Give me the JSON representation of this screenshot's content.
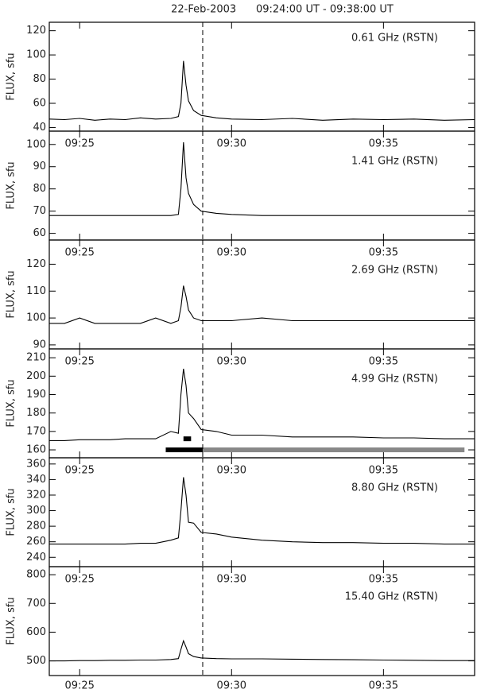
{
  "title": "22-Feb-2003      09:24:00 UT - 09:38:00 UT",
  "chart_data": [
    {
      "type": "line",
      "label": "0.61 GHz (RSTN)",
      "ylabel": "FLUX, sfu",
      "ylim": [
        37,
        127
      ],
      "yticks": [
        40,
        60,
        80,
        100,
        120
      ],
      "xlim": [
        "09:24:00",
        "09:38:00"
      ],
      "xticks": [
        {
          "value": "09:25:00",
          "label": "09:25"
        },
        {
          "value": "09:30:00",
          "label": "09:30"
        },
        {
          "value": "09:35:00",
          "label": "09:35"
        }
      ],
      "vline": "09:29:03",
      "x": [
        "09:24:00",
        "09:24:30",
        "09:25:00",
        "09:25:30",
        "09:26:00",
        "09:26:30",
        "09:27:00",
        "09:27:30",
        "09:28:00",
        "09:28:15",
        "09:28:20",
        "09:28:25",
        "09:28:30",
        "09:28:35",
        "09:28:45",
        "09:29:00",
        "09:29:30",
        "09:30:00",
        "09:31:00",
        "09:32:00",
        "09:33:00",
        "09:34:00",
        "09:35:00",
        "09:36:00",
        "09:37:00",
        "09:38:00"
      ],
      "values": [
        47,
        46.5,
        47.5,
        46,
        47,
        46.5,
        48,
        47,
        47.5,
        49,
        60,
        95,
        75,
        62,
        54,
        50,
        48,
        47,
        46.5,
        47.5,
        46,
        47,
        46.5,
        47,
        46,
        46.5
      ]
    },
    {
      "type": "line",
      "label": "1.41 GHz (RSTN)",
      "ylabel": "FLUX, sfu",
      "ylim": [
        57,
        106
      ],
      "yticks": [
        60,
        70,
        80,
        90,
        100
      ],
      "xlim": [
        "09:24:00",
        "09:38:00"
      ],
      "xticks": [
        {
          "value": "09:25:00",
          "label": "09:25"
        },
        {
          "value": "09:30:00",
          "label": "09:30"
        },
        {
          "value": "09:35:00",
          "label": "09:35"
        }
      ],
      "vline": "09:29:03",
      "x": [
        "09:24:00",
        "09:24:30",
        "09:25:00",
        "09:25:30",
        "09:26:00",
        "09:26:30",
        "09:27:00",
        "09:27:30",
        "09:28:00",
        "09:28:15",
        "09:28:20",
        "09:28:25",
        "09:28:30",
        "09:28:35",
        "09:28:45",
        "09:29:00",
        "09:29:30",
        "09:30:00",
        "09:31:00",
        "09:32:00",
        "09:33:00",
        "09:34:00",
        "09:35:00",
        "09:36:00",
        "09:37:00",
        "09:38:00"
      ],
      "values": [
        68,
        68,
        68,
        68,
        68,
        68,
        68,
        68,
        68,
        68.5,
        80,
        101,
        85,
        78,
        73,
        70,
        69,
        68.5,
        68,
        68,
        68,
        68,
        68,
        68,
        68,
        68
      ]
    },
    {
      "type": "line",
      "label": "2.69 GHz (RSTN)",
      "ylabel": "FLUX, sfu",
      "ylim": [
        88.5,
        129
      ],
      "yticks": [
        90,
        100,
        110,
        120
      ],
      "xlim": [
        "09:24:00",
        "09:38:00"
      ],
      "xticks": [
        {
          "value": "09:25:00",
          "label": "09:25"
        },
        {
          "value": "09:30:00",
          "label": "09:30"
        },
        {
          "value": "09:35:00",
          "label": "09:35"
        }
      ],
      "vline": "09:29:03",
      "x": [
        "09:24:00",
        "09:24:30",
        "09:25:00",
        "09:25:30",
        "09:26:00",
        "09:26:30",
        "09:27:00",
        "09:27:30",
        "09:28:00",
        "09:28:15",
        "09:28:20",
        "09:28:25",
        "09:28:30",
        "09:28:35",
        "09:28:45",
        "09:29:00",
        "09:29:30",
        "09:30:00",
        "09:31:00",
        "09:32:00",
        "09:33:00",
        "09:34:00",
        "09:35:00",
        "09:36:00",
        "09:37:00",
        "09:38:00"
      ],
      "values": [
        98,
        98,
        100,
        98,
        98,
        98,
        98,
        100,
        98,
        99,
        104,
        112,
        108,
        103,
        100,
        99,
        99,
        99,
        100,
        99,
        99,
        99,
        99,
        99,
        99,
        99
      ]
    },
    {
      "type": "line",
      "label": "4.99 GHz (RSTN)",
      "ylabel": "FLUX, sfu",
      "ylim": [
        155.7,
        214.8
      ],
      "yticks": [
        160,
        170,
        180,
        190,
        200,
        210
      ],
      "xlim": [
        "09:24:00",
        "09:38:00"
      ],
      "xticks": [
        {
          "value": "09:25:00",
          "label": "09:25"
        },
        {
          "value": "09:30:00",
          "label": "09:30"
        },
        {
          "value": "09:35:00",
          "label": "09:35"
        }
      ],
      "vline": "09:29:03",
      "x": [
        "09:24:00",
        "09:24:30",
        "09:25:00",
        "09:25:30",
        "09:26:00",
        "09:26:30",
        "09:27:00",
        "09:27:30",
        "09:28:00",
        "09:28:15",
        "09:28:20",
        "09:28:25",
        "09:28:30",
        "09:28:35",
        "09:28:45",
        "09:29:00",
        "09:29:30",
        "09:30:00",
        "09:31:00",
        "09:32:00",
        "09:33:00",
        "09:34:00",
        "09:35:00",
        "09:36:00",
        "09:37:00",
        "09:38:00"
      ],
      "values": [
        165,
        165,
        165.5,
        165.5,
        165.5,
        166,
        166,
        166,
        170,
        169,
        190,
        204,
        195,
        180,
        177,
        171,
        170,
        168,
        168,
        167,
        167,
        167,
        166.5,
        166.5,
        166,
        166
      ],
      "intervals": [
        {
          "start": "09:28:25",
          "end": "09:28:40",
          "level": 166,
          "color": "#000000"
        },
        {
          "start": "09:27:50",
          "end": "09:29:03",
          "level": 160,
          "color": "#000000"
        },
        {
          "start": "09:29:03",
          "end": "09:37:40",
          "level": 160,
          "color": "#888888"
        }
      ]
    },
    {
      "type": "line",
      "label": "8.80 GHz (RSTN)",
      "ylabel": "FLUX, sfu",
      "ylim": [
        228,
        368
      ],
      "yticks": [
        240,
        260,
        280,
        300,
        320,
        340,
        360
      ],
      "xlim": [
        "09:24:00",
        "09:38:00"
      ],
      "xticks": [
        {
          "value": "09:25:00",
          "label": "09:25"
        },
        {
          "value": "09:30:00",
          "label": "09:30"
        },
        {
          "value": "09:35:00",
          "label": "09:35"
        }
      ],
      "vline": "09:29:03",
      "x": [
        "09:24:00",
        "09:24:30",
        "09:25:00",
        "09:25:30",
        "09:26:00",
        "09:26:30",
        "09:27:00",
        "09:27:30",
        "09:28:00",
        "09:28:15",
        "09:28:20",
        "09:28:25",
        "09:28:30",
        "09:28:35",
        "09:28:45",
        "09:29:00",
        "09:29:30",
        "09:30:00",
        "09:31:00",
        "09:32:00",
        "09:33:00",
        "09:34:00",
        "09:35:00",
        "09:36:00",
        "09:37:00",
        "09:38:00"
      ],
      "values": [
        257,
        257,
        257,
        257,
        257,
        257,
        258,
        258,
        262,
        265,
        300,
        343,
        320,
        285,
        284,
        272,
        270,
        266,
        262,
        260,
        259,
        259,
        258,
        258,
        257,
        257
      ]
    },
    {
      "type": "line",
      "label": "15.40 GHz (RSTN)",
      "ylabel": "FLUX, sfu",
      "ylim": [
        449,
        828
      ],
      "yticks": [
        500,
        600,
        700,
        800
      ],
      "xlim": [
        "09:24:00",
        "09:38:00"
      ],
      "xticks": [
        {
          "value": "09:25:00",
          "label": "09:25"
        },
        {
          "value": "09:30:00",
          "label": "09:30"
        },
        {
          "value": "09:35:00",
          "label": "09:35"
        }
      ],
      "vline": "09:29:03",
      "x": [
        "09:24:00",
        "09:24:30",
        "09:25:00",
        "09:25:30",
        "09:26:00",
        "09:26:30",
        "09:27:00",
        "09:27:30",
        "09:28:00",
        "09:28:15",
        "09:28:20",
        "09:28:25",
        "09:28:30",
        "09:28:35",
        "09:28:45",
        "09:29:00",
        "09:29:30",
        "09:30:00",
        "09:31:00",
        "09:32:00",
        "09:33:00",
        "09:34:00",
        "09:35:00",
        "09:36:00",
        "09:37:00",
        "09:38:00"
      ],
      "values": [
        500,
        500,
        501,
        501,
        502,
        502,
        503,
        503,
        505,
        508,
        540,
        570,
        548,
        525,
        515,
        510,
        508,
        507,
        507,
        506,
        505,
        504,
        503,
        502,
        501,
        501
      ]
    }
  ]
}
